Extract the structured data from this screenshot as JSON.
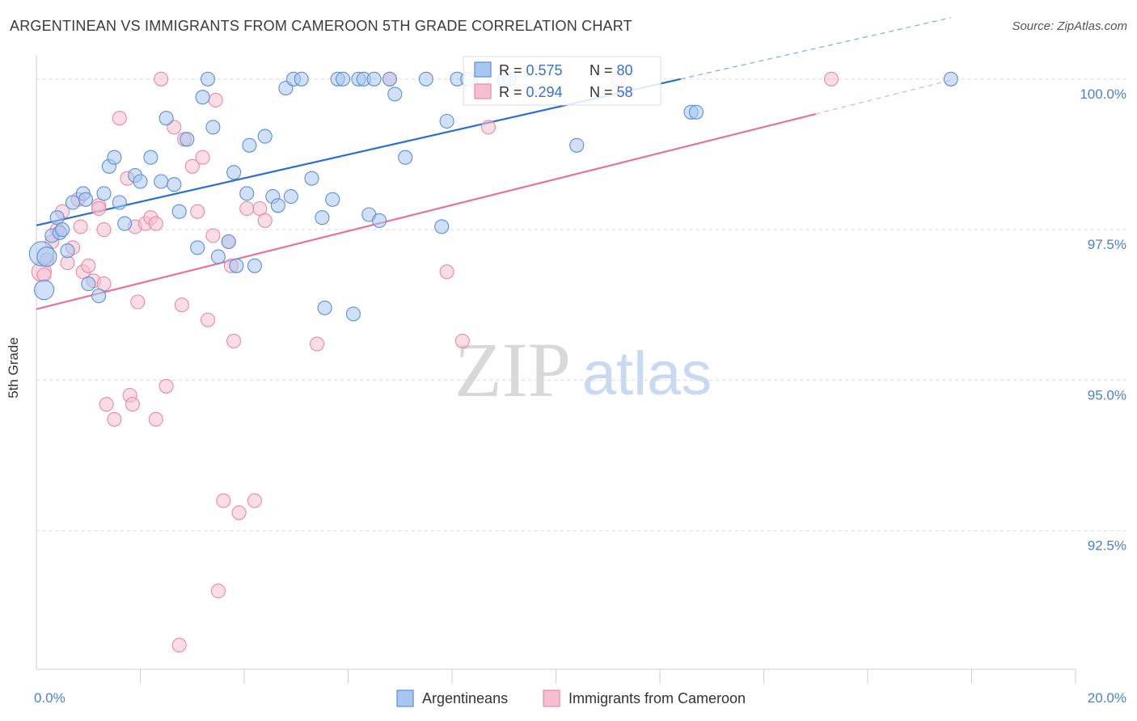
{
  "header": {
    "title": "ARGENTINEAN VS IMMIGRANTS FROM CAMEROON 5TH GRADE CORRELATION CHART",
    "source": "Source: ZipAtlas.com"
  },
  "watermark": {
    "zip": "ZIP",
    "atlas": "atlas"
  },
  "colors": {
    "blue_fill": "#a9c6f0",
    "blue_stroke": "#5a8fd8",
    "blue_line": "#2a6fd0",
    "pink_fill": "#f6bfd0",
    "pink_stroke": "#e889a8",
    "pink_line": "#e4739a",
    "tick_text": "#4a7fd0",
    "grid": "#d9d9d9"
  },
  "stats": {
    "blue": {
      "r_label": "R = ",
      "r_value": "0.575",
      "n_label": "N = ",
      "n_value": "80"
    },
    "pink": {
      "r_label": "R = ",
      "r_value": "0.294",
      "n_label": "N = ",
      "n_value": "58"
    }
  },
  "legend": {
    "blue_label": "Argentineans",
    "pink_label": "Immigrants from Cameroon"
  },
  "chart_data": {
    "type": "scatter",
    "title": "ARGENTINEAN VS IMMIGRANTS FROM CAMEROON 5TH GRADE CORRELATION CHART",
    "xlabel": "",
    "ylabel": "5th Grade",
    "xlim": [
      0.0,
      20.0
    ],
    "ylim": [
      90.2,
      100.4
    ],
    "x_tick_labels": [
      {
        "value": 0.0,
        "label": "0.0%"
      },
      {
        "value": 20.0,
        "label": "20.0%"
      }
    ],
    "x_minor_ticks": [
      2,
      4,
      6,
      8,
      10,
      12,
      14,
      16,
      18,
      20
    ],
    "y_ticks": [
      {
        "value": 100.0,
        "label": "100.0%"
      },
      {
        "value": 97.5,
        "label": "97.5%"
      },
      {
        "value": 95.0,
        "label": "95.0%"
      },
      {
        "value": 92.5,
        "label": "92.5%"
      }
    ],
    "series": [
      {
        "name": "Argentineans",
        "color": "#a9c6f0",
        "trendline": {
          "x0": 0.0,
          "y0": 97.57,
          "x1": 12.4,
          "y1": 100.0,
          "dashed_to_x": 17.6
        },
        "points": [
          {
            "x": 0.1,
            "y": 97.1,
            "s": "xl"
          },
          {
            "x": 0.15,
            "y": 96.5,
            "s": "lg"
          },
          {
            "x": 0.2,
            "y": 97.05,
            "s": "lg"
          },
          {
            "x": 0.3,
            "y": 97.4
          },
          {
            "x": 0.4,
            "y": 97.7
          },
          {
            "x": 0.45,
            "y": 97.45
          },
          {
            "x": 0.5,
            "y": 97.5
          },
          {
            "x": 0.6,
            "y": 97.15
          },
          {
            "x": 0.7,
            "y": 97.95
          },
          {
            "x": 0.9,
            "y": 98.1
          },
          {
            "x": 0.95,
            "y": 98.0
          },
          {
            "x": 1.0,
            "y": 96.6
          },
          {
            "x": 1.2,
            "y": 96.4
          },
          {
            "x": 1.3,
            "y": 98.1
          },
          {
            "x": 1.4,
            "y": 98.55
          },
          {
            "x": 1.5,
            "y": 98.7
          },
          {
            "x": 1.6,
            "y": 97.95
          },
          {
            "x": 1.7,
            "y": 97.6
          },
          {
            "x": 1.9,
            "y": 98.4
          },
          {
            "x": 2.0,
            "y": 98.3
          },
          {
            "x": 2.2,
            "y": 98.7
          },
          {
            "x": 2.4,
            "y": 98.3
          },
          {
            "x": 2.5,
            "y": 99.35
          },
          {
            "x": 2.65,
            "y": 98.25
          },
          {
            "x": 2.75,
            "y": 97.8
          },
          {
            "x": 2.9,
            "y": 99.0
          },
          {
            "x": 3.1,
            "y": 97.2
          },
          {
            "x": 3.2,
            "y": 99.7
          },
          {
            "x": 3.3,
            "y": 100.0
          },
          {
            "x": 3.4,
            "y": 99.2
          },
          {
            "x": 3.5,
            "y": 97.05
          },
          {
            "x": 3.7,
            "y": 97.3
          },
          {
            "x": 3.8,
            "y": 98.45
          },
          {
            "x": 3.85,
            "y": 96.9
          },
          {
            "x": 4.05,
            "y": 98.1
          },
          {
            "x": 4.1,
            "y": 98.9
          },
          {
            "x": 4.2,
            "y": 96.9
          },
          {
            "x": 4.4,
            "y": 99.05
          },
          {
            "x": 4.55,
            "y": 98.05
          },
          {
            "x": 4.65,
            "y": 97.9
          },
          {
            "x": 4.8,
            "y": 99.85
          },
          {
            "x": 4.9,
            "y": 98.05
          },
          {
            "x": 4.95,
            "y": 100.0
          },
          {
            "x": 5.1,
            "y": 100.0
          },
          {
            "x": 5.3,
            "y": 98.35
          },
          {
            "x": 5.5,
            "y": 97.7
          },
          {
            "x": 5.55,
            "y": 96.2
          },
          {
            "x": 5.7,
            "y": 98.0
          },
          {
            "x": 5.8,
            "y": 100.0
          },
          {
            "x": 5.9,
            "y": 100.0
          },
          {
            "x": 6.1,
            "y": 96.1
          },
          {
            "x": 6.2,
            "y": 100.0
          },
          {
            "x": 6.3,
            "y": 100.0
          },
          {
            "x": 6.4,
            "y": 97.75
          },
          {
            "x": 6.5,
            "y": 100.0
          },
          {
            "x": 6.6,
            "y": 97.65
          },
          {
            "x": 6.8,
            "y": 100.0
          },
          {
            "x": 6.9,
            "y": 99.75
          },
          {
            "x": 7.1,
            "y": 98.7
          },
          {
            "x": 7.5,
            "y": 100.0
          },
          {
            "x": 7.8,
            "y": 97.55
          },
          {
            "x": 7.9,
            "y": 99.3
          },
          {
            "x": 8.1,
            "y": 100.0
          },
          {
            "x": 8.3,
            "y": 100.0
          },
          {
            "x": 8.6,
            "y": 100.0
          },
          {
            "x": 9.0,
            "y": 100.0
          },
          {
            "x": 9.1,
            "y": 100.0
          },
          {
            "x": 10.4,
            "y": 98.9
          },
          {
            "x": 12.6,
            "y": 99.45
          },
          {
            "x": 12.7,
            "y": 99.45
          },
          {
            "x": 17.6,
            "y": 100.0
          }
        ]
      },
      {
        "name": "Immigrants from Cameroon",
        "color": "#f6bfd0",
        "trendline": {
          "x0": 0.0,
          "y0": 96.18,
          "x1": 15.0,
          "y1": 99.42,
          "dashed_to_x": 17.6
        },
        "points": [
          {
            "x": 0.1,
            "y": 96.8,
            "s": "lg"
          },
          {
            "x": 0.2,
            "y": 97.0
          },
          {
            "x": 0.3,
            "y": 97.3
          },
          {
            "x": 0.4,
            "y": 97.5
          },
          {
            "x": 0.5,
            "y": 97.8
          },
          {
            "x": 0.6,
            "y": 96.95
          },
          {
            "x": 0.7,
            "y": 97.2
          },
          {
            "x": 0.8,
            "y": 98.0
          },
          {
            "x": 0.85,
            "y": 97.55
          },
          {
            "x": 0.9,
            "y": 96.8
          },
          {
            "x": 1.0,
            "y": 96.9
          },
          {
            "x": 1.1,
            "y": 96.65
          },
          {
            "x": 1.2,
            "y": 97.9
          },
          {
            "x": 1.3,
            "y": 97.5
          },
          {
            "x": 1.35,
            "y": 94.6
          },
          {
            "x": 1.5,
            "y": 94.35
          },
          {
            "x": 1.6,
            "y": 99.35
          },
          {
            "x": 1.75,
            "y": 98.35
          },
          {
            "x": 1.8,
            "y": 94.75
          },
          {
            "x": 1.85,
            "y": 94.6
          },
          {
            "x": 1.9,
            "y": 97.55
          },
          {
            "x": 1.95,
            "y": 96.3
          },
          {
            "x": 2.1,
            "y": 97.6
          },
          {
            "x": 2.2,
            "y": 97.7
          },
          {
            "x": 2.3,
            "y": 94.35
          },
          {
            "x": 2.5,
            "y": 94.9
          },
          {
            "x": 2.65,
            "y": 99.2
          },
          {
            "x": 2.75,
            "y": 90.6
          },
          {
            "x": 2.8,
            "y": 96.25
          },
          {
            "x": 2.85,
            "y": 99.0
          },
          {
            "x": 3.0,
            "y": 98.55
          },
          {
            "x": 3.1,
            "y": 97.8
          },
          {
            "x": 3.2,
            "y": 98.7
          },
          {
            "x": 3.3,
            "y": 96.0
          },
          {
            "x": 3.4,
            "y": 97.4
          },
          {
            "x": 3.45,
            "y": 99.65
          },
          {
            "x": 3.5,
            "y": 91.5
          },
          {
            "x": 3.6,
            "y": 93.0
          },
          {
            "x": 3.7,
            "y": 97.3
          },
          {
            "x": 3.8,
            "y": 95.65
          },
          {
            "x": 3.9,
            "y": 92.8
          },
          {
            "x": 4.2,
            "y": 93.0
          },
          {
            "x": 4.3,
            "y": 97.85
          },
          {
            "x": 4.4,
            "y": 97.65
          },
          {
            "x": 2.4,
            "y": 100.0
          },
          {
            "x": 5.4,
            "y": 95.6
          },
          {
            "x": 6.8,
            "y": 100.0
          },
          {
            "x": 7.9,
            "y": 96.8
          },
          {
            "x": 8.2,
            "y": 95.65
          },
          {
            "x": 8.7,
            "y": 99.2
          },
          {
            "x": 11.2,
            "y": 100.0
          },
          {
            "x": 15.3,
            "y": 100.0
          },
          {
            "x": 0.15,
            "y": 96.75
          },
          {
            "x": 1.2,
            "y": 97.85
          },
          {
            "x": 2.3,
            "y": 97.6
          },
          {
            "x": 3.75,
            "y": 96.9
          },
          {
            "x": 4.05,
            "y": 97.85
          },
          {
            "x": 1.3,
            "y": 96.6
          }
        ]
      }
    ]
  }
}
